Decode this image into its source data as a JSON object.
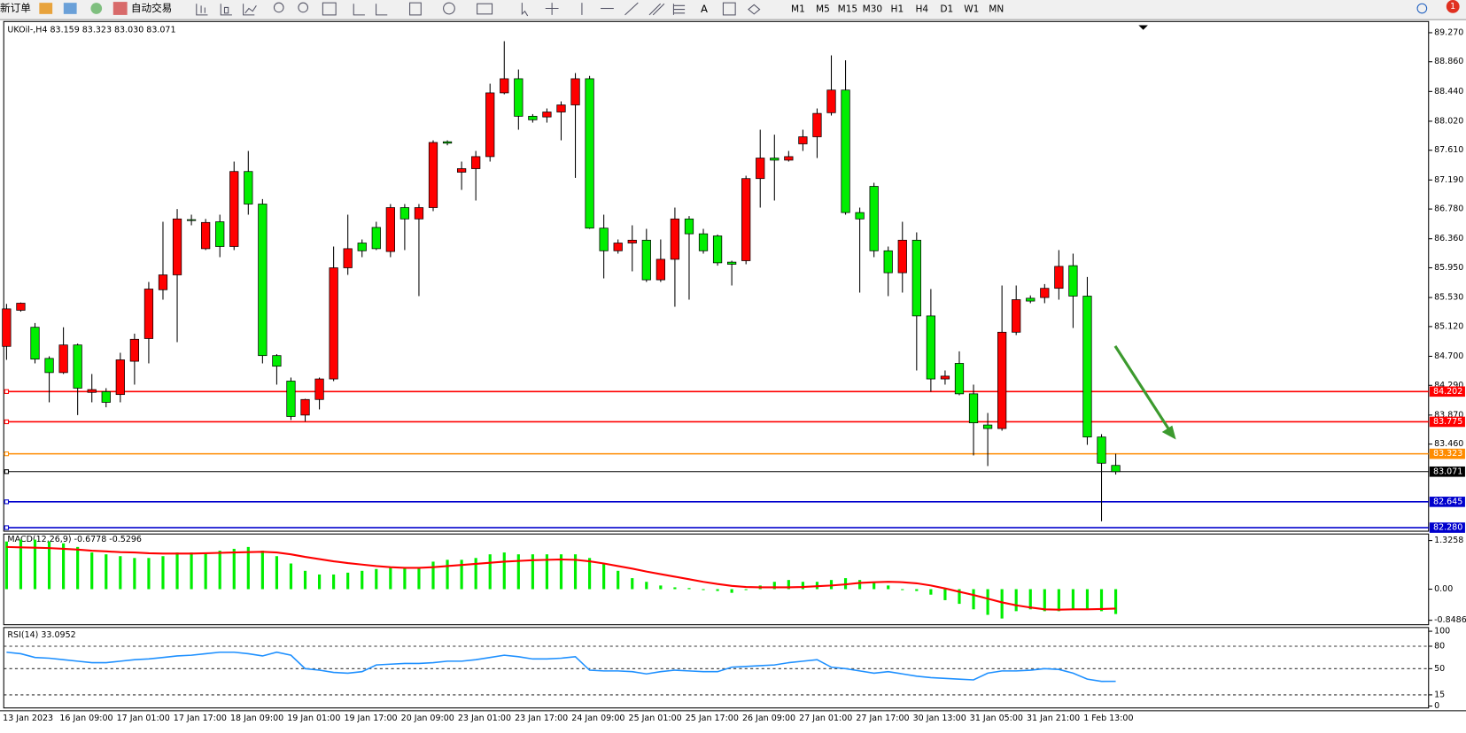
{
  "toolbar": {
    "new_order": "新订单",
    "auto_trade": "自动交易",
    "timeframes": [
      "M1",
      "M5",
      "M15",
      "M30",
      "H1",
      "H4",
      "D1",
      "W1",
      "MN"
    ],
    "badge": "1"
  },
  "chart_data": [
    {
      "type": "candlestick",
      "title": "UKOil-,H4  83.159 83.323 83.030 83.071",
      "up_color": "#ff0000",
      "down_color": "#00ee00",
      "categories": [
        "13 Jan 2023",
        null,
        null,
        null,
        "16 Jan 09:00",
        null,
        null,
        null,
        "17 Jan 01:00",
        null,
        null,
        null,
        "17 Jan 17:00",
        null,
        null,
        null,
        "18 Jan 09:00",
        null,
        null,
        null,
        "19 Jan 01:00",
        null,
        null,
        null,
        "19 Jan 17:00",
        null,
        null,
        null,
        "20 Jan 09:00",
        null,
        null,
        null,
        "23 Jan 01:00",
        null,
        null,
        null,
        "23 Jan 17:00",
        null,
        null,
        null,
        "24 Jan 09:00",
        null,
        null,
        null,
        "25 Jan 01:00",
        null,
        null,
        null,
        "25 Jan 17:00",
        null,
        null,
        null,
        "26 Jan 09:00",
        null,
        null,
        null,
        "27 Jan 01:00",
        null,
        null,
        null,
        "27 Jan 17:00",
        null,
        null,
        null,
        "30 Jan 13:00",
        null,
        null,
        null,
        "31 Jan 05:00",
        null,
        null,
        null,
        "31 Jan 21:00",
        null,
        null,
        null,
        "1 Feb 13:00",
        null,
        null
      ],
      "open": [
        84.84,
        85.35,
        85.11,
        84.67,
        84.47,
        84.86,
        84.19,
        84.2,
        84.16,
        84.63,
        84.95,
        85.64,
        85.85,
        86.63,
        86.22,
        86.6,
        86.25,
        87.31,
        86.85,
        84.71,
        84.35,
        83.87,
        84.09,
        84.38,
        85.95,
        86.3,
        86.52,
        86.18,
        86.8,
        86.64,
        86.8,
        87.73,
        87.3,
        87.35,
        87.52,
        88.42,
        88.62,
        88.09,
        88.08,
        88.15,
        88.25,
        88.62,
        86.51,
        86.19,
        86.3,
        86.34,
        85.78,
        86.07,
        86.64,
        86.43,
        86.4,
        86.03,
        86.05,
        87.21,
        87.5,
        87.47,
        87.7,
        87.8,
        88.14,
        88.46,
        86.73,
        87.1,
        86.19,
        85.88,
        86.34,
        85.27,
        84.38,
        84.6,
        84.17,
        83.73,
        83.68,
        85.04,
        85.52,
        85.53,
        85.66,
        85.98,
        85.55,
        83.56,
        83.159
      ],
      "high": [
        85.44,
        85.46,
        85.17,
        84.7,
        85.11,
        84.88,
        84.45,
        84.25,
        84.75,
        85.02,
        85.75,
        86.6,
        86.78,
        86.7,
        86.64,
        86.7,
        87.45,
        87.6,
        86.92,
        84.73,
        84.4,
        84.1,
        84.4,
        86.25,
        86.7,
        86.35,
        86.6,
        86.85,
        86.85,
        86.85,
        87.75,
        87.75,
        87.45,
        87.6,
        88.55,
        89.15,
        88.75,
        88.12,
        88.2,
        88.3,
        88.7,
        88.66,
        86.7,
        86.35,
        86.55,
        86.5,
        86.35,
        86.8,
        86.68,
        86.5,
        86.42,
        86.05,
        87.25,
        87.9,
        87.83,
        87.6,
        87.9,
        88.2,
        88.95,
        88.88,
        86.8,
        87.15,
        86.25,
        86.6,
        86.45,
        85.65,
        84.5,
        84.77,
        84.3,
        83.9,
        85.7,
        85.7,
        85.56,
        85.72,
        86.2,
        86.15,
        85.82,
        83.6,
        83.323
      ],
      "low": [
        84.65,
        85.33,
        84.6,
        84.05,
        84.45,
        83.87,
        84.05,
        83.98,
        84.05,
        84.3,
        84.6,
        85.5,
        84.9,
        86.55,
        86.2,
        86.1,
        86.2,
        86.7,
        84.6,
        84.3,
        83.8,
        83.78,
        83.95,
        84.35,
        85.85,
        86.1,
        86.2,
        86.1,
        86.2,
        85.55,
        86.75,
        87.68,
        87.05,
        86.9,
        87.45,
        88.4,
        87.9,
        88.0,
        88.0,
        87.75,
        87.22,
        86.5,
        85.8,
        86.15,
        85.9,
        85.75,
        85.75,
        85.4,
        85.5,
        86.15,
        85.98,
        85.7,
        86.0,
        86.8,
        86.9,
        87.45,
        87.6,
        87.5,
        88.1,
        86.7,
        85.6,
        86.1,
        85.55,
        85.6,
        84.5,
        84.2,
        84.3,
        84.15,
        83.3,
        83.15,
        83.65,
        85.0,
        85.45,
        85.45,
        85.5,
        85.1,
        83.45,
        82.37,
        83.03
      ],
      "close": [
        85.37,
        85.45,
        84.66,
        84.47,
        84.86,
        84.25,
        84.23,
        84.05,
        84.65,
        84.94,
        85.65,
        85.85,
        86.64,
        86.62,
        86.59,
        86.25,
        87.31,
        86.85,
        84.71,
        84.56,
        83.85,
        84.09,
        84.38,
        85.95,
        86.22,
        86.19,
        86.22,
        86.8,
        86.64,
        86.8,
        87.72,
        87.71,
        87.35,
        87.52,
        88.42,
        88.62,
        88.09,
        88.04,
        88.15,
        88.25,
        88.62,
        86.51,
        86.19,
        86.3,
        86.34,
        85.78,
        86.07,
        86.64,
        86.43,
        86.19,
        86.02,
        86.0,
        87.21,
        87.5,
        87.47,
        87.52,
        87.8,
        88.13,
        88.46,
        86.73,
        86.64,
        86.19,
        85.88,
        86.34,
        85.27,
        84.38,
        84.42,
        84.17,
        83.76,
        83.68,
        85.04,
        85.5,
        85.48,
        85.66,
        85.97,
        85.55,
        83.56,
        83.19,
        83.071
      ],
      "ylim": [
        82.23,
        89.37
      ],
      "yticks": [
        {
          "value": 89.27,
          "label": "89.270"
        },
        {
          "value": 88.86,
          "label": "88.860"
        },
        {
          "value": 88.44,
          "label": "88.440"
        },
        {
          "value": 88.02,
          "label": "88.020"
        },
        {
          "value": 87.61,
          "label": "87.610"
        },
        {
          "value": 87.19,
          "label": "87.190"
        },
        {
          "value": 86.78,
          "label": "86.780"
        },
        {
          "value": 86.36,
          "label": "86.360"
        },
        {
          "value": 85.95,
          "label": "85.950"
        },
        {
          "value": 85.53,
          "label": "85.530"
        },
        {
          "value": 85.12,
          "label": "85.120"
        },
        {
          "value": 84.7,
          "label": "84.700"
        },
        {
          "value": 84.29,
          "label": "84.290"
        },
        {
          "value": 83.87,
          "label": "83.870"
        },
        {
          "value": 83.46,
          "label": "83.460"
        }
      ],
      "hlines": [
        {
          "value": 84.202,
          "color": "#ff0000"
        },
        {
          "value": 83.775,
          "color": "#ff0000"
        },
        {
          "value": 83.323,
          "color": "#ff8c00"
        },
        {
          "value": 83.071,
          "color": "#000000"
        },
        {
          "value": 82.645,
          "color": "#0000cd"
        },
        {
          "value": 82.28,
          "label": "82.280",
          "color": "#0000cd"
        }
      ]
    },
    {
      "type": "combo",
      "title": "MACD(12,26,9) -0.6778 -0.5296",
      "series": [
        {
          "type": "bar",
          "color": "#00ee00",
          "values": [
            1.3,
            1.35,
            1.35,
            1.3,
            1.25,
            1.15,
            1.0,
            0.95,
            0.9,
            0.85,
            0.85,
            0.9,
            1.0,
            1.0,
            1.0,
            1.05,
            1.1,
            1.15,
            1.05,
            0.9,
            0.7,
            0.5,
            0.4,
            0.4,
            0.45,
            0.5,
            0.55,
            0.6,
            0.6,
            0.6,
            0.75,
            0.8,
            0.8,
            0.85,
            0.95,
            1.0,
            0.95,
            0.95,
            0.95,
            0.95,
            0.95,
            0.85,
            0.7,
            0.5,
            0.3,
            0.2,
            0.1,
            0.05,
            0.03,
            0.0,
            -0.05,
            -0.1,
            0.0,
            0.1,
            0.2,
            0.25,
            0.2,
            0.2,
            0.25,
            0.3,
            0.25,
            0.2,
            0.1,
            0.0,
            -0.05,
            -0.15,
            -0.3,
            -0.4,
            -0.55,
            -0.7,
            -0.8,
            -0.6,
            -0.55,
            -0.6,
            -0.6,
            -0.55,
            -0.55,
            -0.6,
            -0.6778
          ]
        },
        {
          "type": "line",
          "color": "#ff0000",
          "values": [
            1.15,
            1.14,
            1.13,
            1.12,
            1.1,
            1.08,
            1.05,
            1.03,
            1.01,
            1.0,
            0.98,
            0.97,
            0.97,
            0.97,
            0.98,
            0.99,
            1.0,
            1.01,
            1.02,
            1.0,
            0.95,
            0.88,
            0.82,
            0.76,
            0.71,
            0.67,
            0.63,
            0.6,
            0.58,
            0.58,
            0.6,
            0.63,
            0.66,
            0.69,
            0.72,
            0.75,
            0.77,
            0.79,
            0.8,
            0.81,
            0.8,
            0.76,
            0.7,
            0.63,
            0.56,
            0.48,
            0.41,
            0.34,
            0.27,
            0.2,
            0.14,
            0.09,
            0.06,
            0.05,
            0.05,
            0.05,
            0.06,
            0.08,
            0.1,
            0.13,
            0.17,
            0.19,
            0.2,
            0.19,
            0.16,
            0.1,
            0.02,
            -0.07,
            -0.16,
            -0.26,
            -0.36,
            -0.44,
            -0.5,
            -0.55,
            -0.56,
            -0.55,
            -0.55,
            -0.54,
            -0.5296
          ]
        }
      ],
      "ylim": [
        -0.944,
        1.453
      ],
      "yticks": [
        1.3258,
        {
          "value": 0,
          "label": "0.00"
        },
        -0.8486
      ]
    },
    {
      "type": "line",
      "title": "RSI(14) 33.0952",
      "color": "#1e90ff",
      "level_lines": true,
      "values": [
        72,
        70,
        65,
        64,
        62,
        60,
        58,
        58,
        60,
        62,
        63,
        65,
        67,
        68,
        70,
        72,
        72,
        70,
        67,
        72,
        68,
        50,
        48,
        45,
        44,
        46,
        55,
        56,
        57,
        57,
        58,
        60,
        60,
        62,
        65,
        68,
        66,
        63,
        63,
        64,
        66,
        48,
        47,
        47,
        46,
        43,
        46,
        48,
        47,
        46,
        46,
        52,
        53,
        54,
        55,
        58,
        60,
        62,
        52,
        50,
        47,
        44,
        46,
        43,
        40,
        38,
        37,
        36,
        35,
        44,
        47,
        47,
        48,
        50,
        49,
        44,
        36,
        33,
        33.0952
      ],
      "ylim": [
        0,
        100
      ],
      "yticks": [
        100,
        80,
        50,
        15,
        0
      ]
    }
  ]
}
